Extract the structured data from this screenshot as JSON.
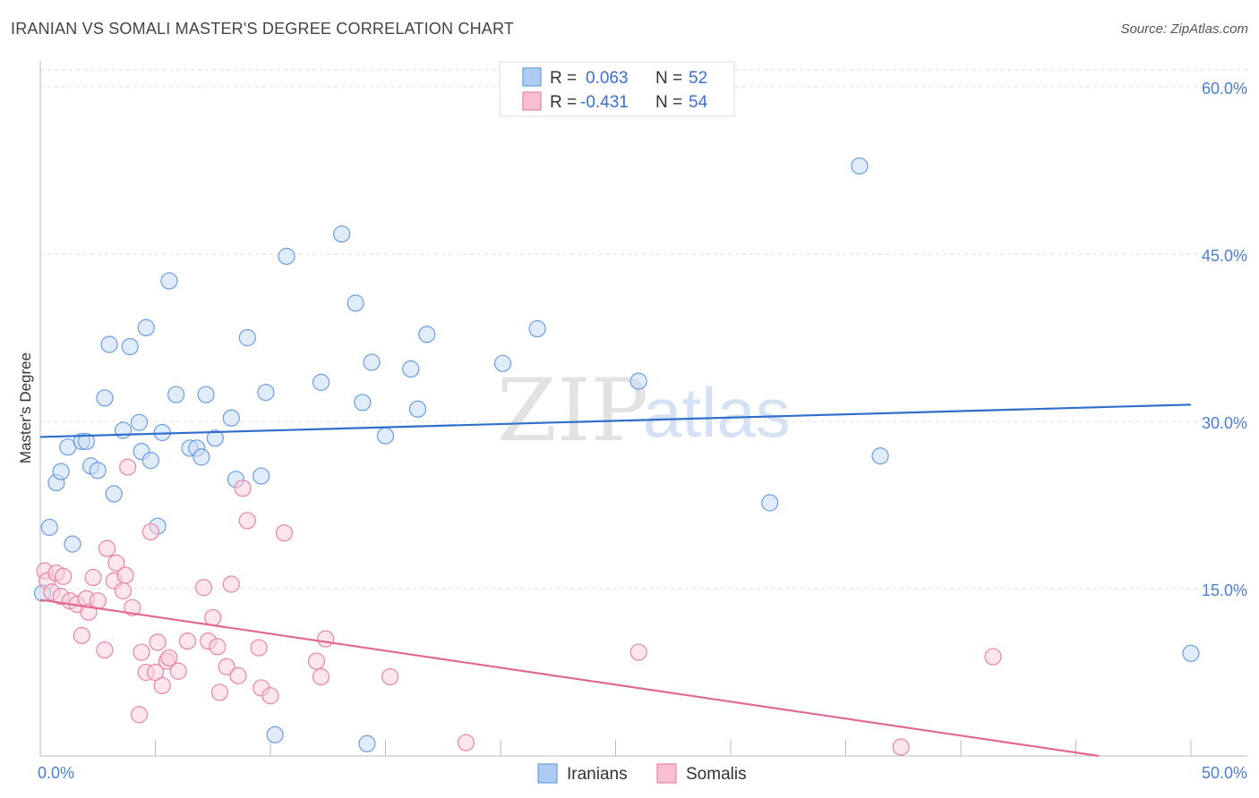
{
  "header": {
    "title": "IRANIAN VS SOMALI MASTER'S DEGREE CORRELATION CHART",
    "source": "Source: ZipAtlas.com"
  },
  "watermark": {
    "zip": "ZIP",
    "atlas": "atlas"
  },
  "stats": [
    {
      "r_label": "R =",
      "r_value": "0.063",
      "n_label": "N =",
      "n_value": "52",
      "color": "#aecbf2",
      "stroke": "#6a9ee0"
    },
    {
      "r_label": "R =",
      "r_value": "-0.431",
      "n_label": "N =",
      "n_value": "54",
      "color": "#f7bfd1",
      "stroke": "#e884a5"
    }
  ],
  "legend": [
    {
      "label": "Iranians",
      "color": "#aecbf2",
      "stroke": "#6a9ee0"
    },
    {
      "label": "Somalis",
      "color": "#f7bfd1",
      "stroke": "#e884a5"
    }
  ],
  "chart_data": {
    "type": "scatter",
    "title": "IRANIAN VS SOMALI MASTER'S DEGREE CORRELATION CHART",
    "xlabel": "",
    "ylabel": "Master's Degree",
    "xlim": [
      0,
      50
    ],
    "ylim": [
      0,
      60
    ],
    "x_tick_labels": {
      "left": "0.0%",
      "right": "50.0%"
    },
    "y_ticks": [
      {
        "value": 15,
        "label": "15.0%"
      },
      {
        "value": 30,
        "label": "30.0%"
      },
      {
        "value": 45,
        "label": "45.0%"
      },
      {
        "value": 60,
        "label": "60.0%"
      }
    ],
    "series": [
      {
        "name": "Iranians",
        "color": "#6a9ee0",
        "fill": "#c9dcf6",
        "trend_color": "#2f6fcc",
        "trend": {
          "x0": 0,
          "y0": 28.6,
          "x1": 50,
          "y1": 31.5
        },
        "points": [
          [
            0.4,
            20.5
          ],
          [
            0.7,
            24.5
          ],
          [
            0.9,
            25.5
          ],
          [
            1.2,
            27.7
          ],
          [
            1.4,
            19.0
          ],
          [
            1.8,
            28.2
          ],
          [
            2.0,
            28.2
          ],
          [
            2.2,
            26.0
          ],
          [
            2.5,
            25.6
          ],
          [
            2.8,
            32.1
          ],
          [
            3.0,
            36.9
          ],
          [
            3.2,
            23.5
          ],
          [
            3.6,
            29.2
          ],
          [
            3.9,
            36.7
          ],
          [
            4.3,
            29.9
          ],
          [
            4.4,
            27.3
          ],
          [
            4.6,
            38.4
          ],
          [
            4.8,
            26.5
          ],
          [
            5.1,
            20.6
          ],
          [
            5.3,
            29.0
          ],
          [
            5.6,
            42.6
          ],
          [
            5.9,
            32.4
          ],
          [
            6.5,
            27.6
          ],
          [
            6.8,
            27.6
          ],
          [
            7.0,
            26.8
          ],
          [
            7.2,
            32.4
          ],
          [
            7.6,
            28.5
          ],
          [
            8.3,
            30.3
          ],
          [
            8.5,
            24.8
          ],
          [
            9.0,
            37.5
          ],
          [
            9.6,
            25.1
          ],
          [
            9.8,
            32.6
          ],
          [
            10.2,
            1.9
          ],
          [
            10.7,
            44.8
          ],
          [
            12.2,
            33.5
          ],
          [
            13.1,
            46.8
          ],
          [
            13.7,
            40.6
          ],
          [
            14.0,
            31.7
          ],
          [
            14.4,
            35.3
          ],
          [
            14.2,
            1.1
          ],
          [
            15.0,
            28.7
          ],
          [
            16.1,
            34.7
          ],
          [
            16.4,
            31.1
          ],
          [
            16.8,
            37.8
          ],
          [
            20.1,
            35.2
          ],
          [
            21.6,
            38.3
          ],
          [
            26.0,
            33.6
          ],
          [
            31.7,
            22.7
          ],
          [
            35.6,
            52.9
          ],
          [
            36.5,
            26.9
          ],
          [
            50.0,
            9.2
          ],
          [
            0.1,
            14.6
          ]
        ]
      },
      {
        "name": "Somalis",
        "color": "#e884a5",
        "fill": "#f9cfdd",
        "trend_color": "#e06892",
        "trend": {
          "x0": 0,
          "y0": 14.0,
          "x1": 46.0,
          "y1": 0.0
        },
        "points": [
          [
            0.2,
            16.6
          ],
          [
            0.3,
            15.7
          ],
          [
            0.5,
            14.7
          ],
          [
            0.7,
            16.4
          ],
          [
            0.9,
            14.3
          ],
          [
            1.0,
            16.1
          ],
          [
            1.3,
            13.9
          ],
          [
            1.6,
            13.6
          ],
          [
            1.8,
            10.8
          ],
          [
            2.0,
            14.1
          ],
          [
            2.1,
            12.9
          ],
          [
            2.3,
            16.0
          ],
          [
            2.5,
            13.9
          ],
          [
            2.8,
            9.5
          ],
          [
            2.9,
            18.6
          ],
          [
            3.2,
            15.7
          ],
          [
            3.3,
            17.3
          ],
          [
            3.6,
            14.8
          ],
          [
            3.7,
            16.2
          ],
          [
            3.8,
            25.9
          ],
          [
            4.0,
            13.3
          ],
          [
            4.3,
            3.7
          ],
          [
            4.4,
            9.3
          ],
          [
            4.6,
            7.5
          ],
          [
            4.8,
            20.1
          ],
          [
            5.0,
            7.5
          ],
          [
            5.1,
            10.2
          ],
          [
            5.3,
            6.3
          ],
          [
            5.5,
            8.5
          ],
          [
            5.6,
            8.8
          ],
          [
            6.0,
            7.6
          ],
          [
            6.4,
            10.3
          ],
          [
            7.1,
            15.1
          ],
          [
            7.3,
            10.3
          ],
          [
            7.5,
            12.4
          ],
          [
            7.7,
            9.8
          ],
          [
            7.8,
            5.7
          ],
          [
            8.1,
            8.0
          ],
          [
            8.3,
            15.4
          ],
          [
            8.6,
            7.2
          ],
          [
            8.8,
            24.0
          ],
          [
            9.0,
            21.1
          ],
          [
            9.5,
            9.7
          ],
          [
            9.6,
            6.1
          ],
          [
            10.0,
            5.4
          ],
          [
            10.6,
            20.0
          ],
          [
            12.0,
            8.5
          ],
          [
            12.2,
            7.1
          ],
          [
            12.4,
            10.5
          ],
          [
            15.2,
            7.1
          ],
          [
            18.5,
            1.2
          ],
          [
            26.0,
            9.3
          ],
          [
            37.4,
            0.8
          ],
          [
            41.4,
            8.9
          ]
        ]
      }
    ]
  }
}
